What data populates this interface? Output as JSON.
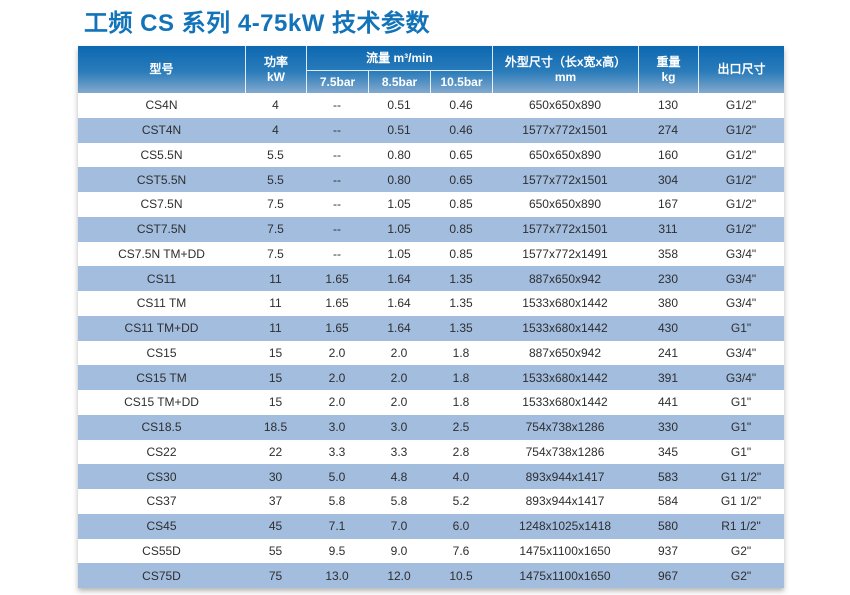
{
  "page": {
    "title": "工频 CS 系列 4-75kW 技术参数"
  },
  "colors": {
    "title_blue": "#1273b9",
    "header_gradient_top": "#0d68b1",
    "header_gradient_bottom": "#83a9ce",
    "stripe_blue": "#a3bddf",
    "row_text": "#2e2e2e"
  },
  "table": {
    "headers": {
      "model": "型号",
      "power_line1": "功率",
      "power_line2": "kW",
      "flow_group": "流量 m³/min",
      "flow_subs": [
        "7.5bar",
        "8.5bar",
        "10.5bar"
      ],
      "dims_line1": "外型尺寸（长x宽x高）",
      "dims_line2": "mm",
      "weight_line1": "重量",
      "weight_line2": "kg",
      "outlet": "出口尺寸"
    },
    "rows": [
      [
        "CS4N",
        "4",
        "--",
        "0.51",
        "0.46",
        "650x650x890",
        "130",
        "G1/2\""
      ],
      [
        "CST4N",
        "4",
        "--",
        "0.51",
        "0.46",
        "1577x772x1501",
        "274",
        "G1/2\""
      ],
      [
        "CS5.5N",
        "5.5",
        "--",
        "0.80",
        "0.65",
        "650x650x890",
        "160",
        "G1/2\""
      ],
      [
        "CST5.5N",
        "5.5",
        "--",
        "0.80",
        "0.65",
        "1577x772x1501",
        "304",
        "G1/2\""
      ],
      [
        "CS7.5N",
        "7.5",
        "--",
        "1.05",
        "0.85",
        "650x650x890",
        "167",
        "G1/2\""
      ],
      [
        "CST7.5N",
        "7.5",
        "--",
        "1.05",
        "0.85",
        "1577x772x1501",
        "311",
        "G1/2\""
      ],
      [
        "CS7.5N TM+DD",
        "7.5",
        "--",
        "1.05",
        "0.85",
        "1577x772x1491",
        "358",
        "G3/4\""
      ],
      [
        "CS11",
        "11",
        "1.65",
        "1.64",
        "1.35",
        "887x650x942",
        "230",
        "G3/4\""
      ],
      [
        "CS11 TM",
        "11",
        "1.65",
        "1.64",
        "1.35",
        "1533x680x1442",
        "380",
        "G3/4\""
      ],
      [
        "CS11 TM+DD",
        "11",
        "1.65",
        "1.64",
        "1.35",
        "1533x680x1442",
        "430",
        "G1\""
      ],
      [
        "CS15",
        "15",
        "2.0",
        "2.0",
        "1.8",
        "887x650x942",
        "241",
        "G3/4\""
      ],
      [
        "CS15 TM",
        "15",
        "2.0",
        "2.0",
        "1.8",
        "1533x680x1442",
        "391",
        "G3/4\""
      ],
      [
        "CS15 TM+DD",
        "15",
        "2.0",
        "2.0",
        "1.8",
        "1533x680x1442",
        "441",
        "G1\""
      ],
      [
        "CS18.5",
        "18.5",
        "3.0",
        "3.0",
        "2.5",
        "754x738x1286",
        "330",
        "G1\""
      ],
      [
        "CS22",
        "22",
        "3.3",
        "3.3",
        "2.8",
        "754x738x1286",
        "345",
        "G1\""
      ],
      [
        "CS30",
        "30",
        "5.0",
        "4.8",
        "4.0",
        "893x944x1417",
        "583",
        "G1 1/2\""
      ],
      [
        "CS37",
        "37",
        "5.8",
        "5.8",
        "5.2",
        "893x944x1417",
        "584",
        "G1 1/2\""
      ],
      [
        "CS45",
        "45",
        "7.1",
        "7.0",
        "6.0",
        "1248x1025x1418",
        "580",
        "R1 1/2\""
      ],
      [
        "CS55D",
        "55",
        "9.5",
        "9.0",
        "7.6",
        "1475x1100x1650",
        "937",
        "G2\""
      ],
      [
        "CS75D",
        "75",
        "13.0",
        "12.0",
        "10.5",
        "1475x1100x1650",
        "967",
        "G2\""
      ]
    ]
  }
}
